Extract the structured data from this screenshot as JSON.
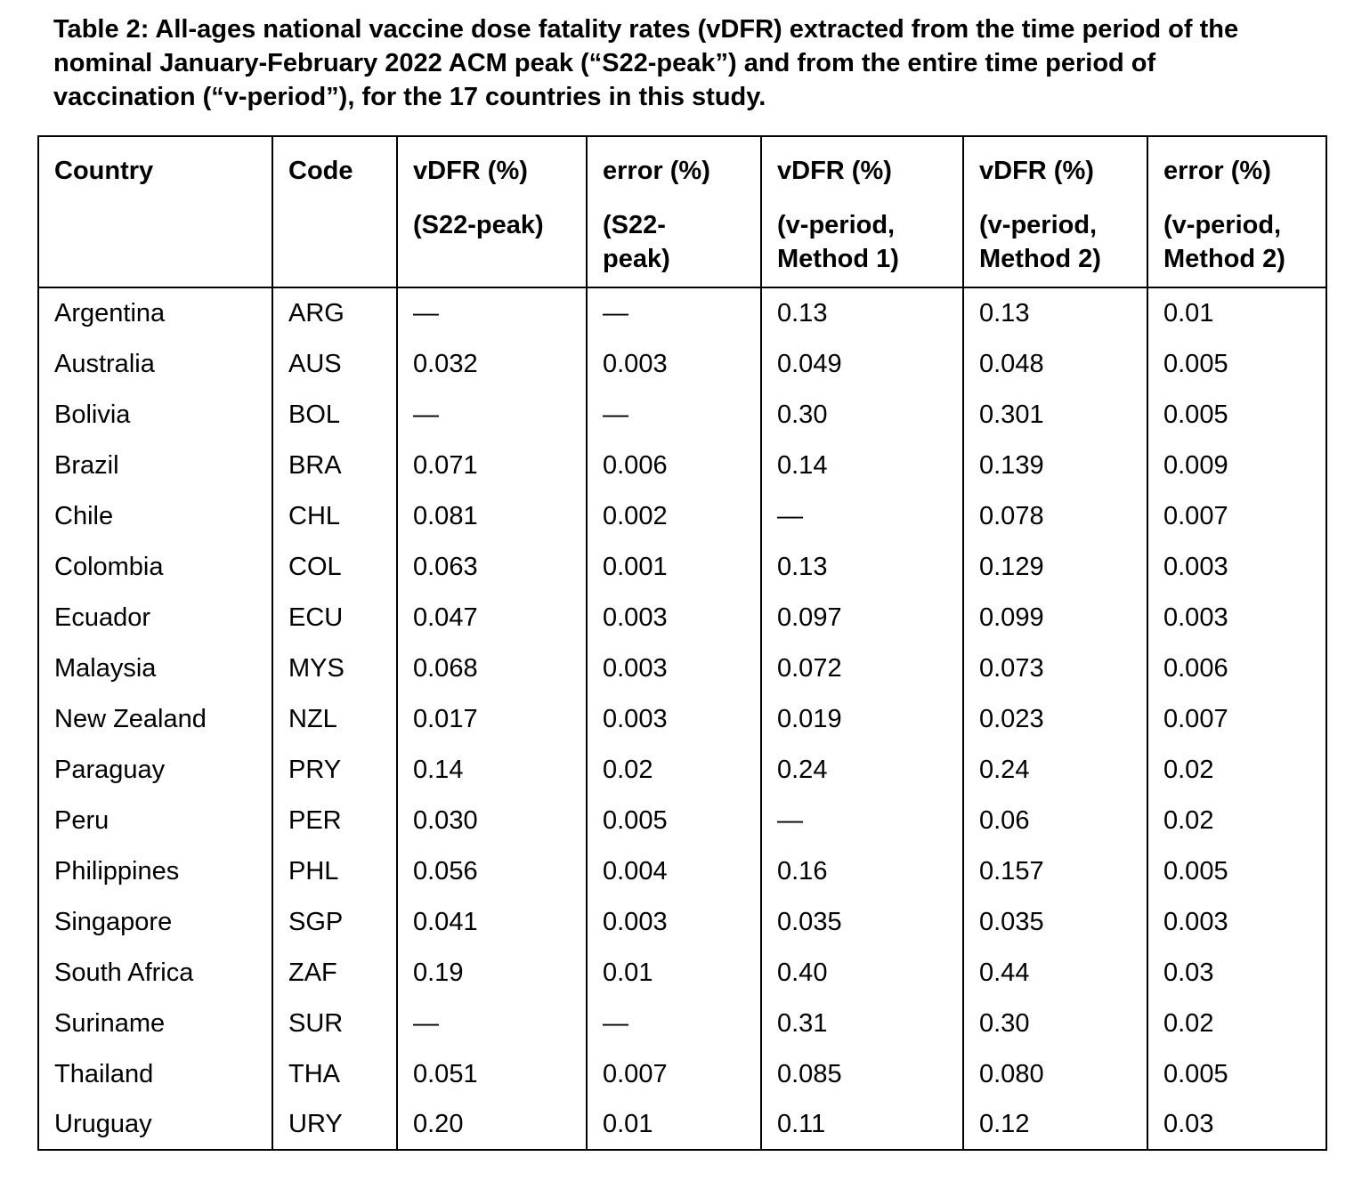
{
  "page": {
    "background_color": "#ffffff",
    "text_color": "#000000",
    "border_color": "#000000"
  },
  "title": "Table 2: All-ages national vaccine dose fatality rates (vDFR) extracted from the time period of the\nnominal January-February 2022 ACM peak (“S22-peak”) and from the entire time period of\nvaccination (“v-period”), for the 17 countries in this study.",
  "table": {
    "columns": [
      {
        "label": "Country",
        "sublabel": ""
      },
      {
        "label": "Code",
        "sublabel": ""
      },
      {
        "label": "vDFR (%)",
        "sublabel": "(S22-peak)"
      },
      {
        "label": "error (%)",
        "sublabel": "(S22-\npeak)"
      },
      {
        "label": "vDFR (%)",
        "sublabel": "(v-period,\nMethod 1)"
      },
      {
        "label": "vDFR (%)",
        "sublabel": "(v-period,\nMethod 2)"
      },
      {
        "label": "error (%)",
        "sublabel": "(v-period,\nMethod 2)"
      }
    ],
    "rows": [
      [
        "Argentina",
        "ARG",
        "—",
        "—",
        "0.13",
        "0.13",
        "0.01"
      ],
      [
        "Australia",
        "AUS",
        "0.032",
        "0.003",
        "0.049",
        "0.048",
        "0.005"
      ],
      [
        "Bolivia",
        "BOL",
        "—",
        "—",
        "0.30",
        "0.301",
        "0.005"
      ],
      [
        "Brazil",
        "BRA",
        "0.071",
        "0.006",
        "0.14",
        "0.139",
        "0.009"
      ],
      [
        "Chile",
        "CHL",
        "0.081",
        "0.002",
        "—",
        "0.078",
        "0.007"
      ],
      [
        "Colombia",
        "COL",
        "0.063",
        "0.001",
        "0.13",
        "0.129",
        "0.003"
      ],
      [
        "Ecuador",
        "ECU",
        "0.047",
        "0.003",
        "0.097",
        "0.099",
        "0.003"
      ],
      [
        "Malaysia",
        "MYS",
        "0.068",
        "0.003",
        "0.072",
        "0.073",
        "0.006"
      ],
      [
        "New Zealand",
        "NZL",
        "0.017",
        "0.003",
        "0.019",
        "0.023",
        "0.007"
      ],
      [
        "Paraguay",
        "PRY",
        "0.14",
        "0.02",
        "0.24",
        "0.24",
        "0.02"
      ],
      [
        "Peru",
        "PER",
        "0.030",
        "0.005",
        "—",
        "0.06",
        "0.02"
      ],
      [
        "Philippines",
        "PHL",
        "0.056",
        "0.004",
        "0.16",
        "0.157",
        "0.005"
      ],
      [
        "Singapore",
        "SGP",
        "0.041",
        "0.003",
        "0.035",
        "0.035",
        "0.003"
      ],
      [
        "South Africa",
        "ZAF",
        "0.19",
        "0.01",
        "0.40",
        "0.44",
        "0.03"
      ],
      [
        "Suriname",
        "SUR",
        "—",
        "—",
        "0.31",
        "0.30",
        "0.02"
      ],
      [
        "Thailand",
        "THA",
        "0.051",
        "0.007",
        "0.085",
        "0.080",
        "0.005"
      ],
      [
        "Uruguay",
        "URY",
        "0.20",
        "0.01",
        "0.11",
        "0.12",
        "0.03"
      ]
    ]
  }
}
